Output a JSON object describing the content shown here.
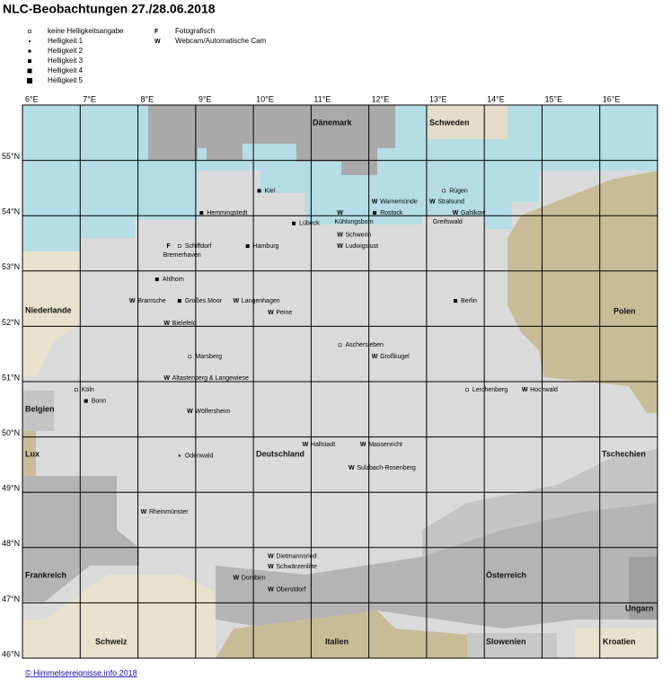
{
  "title": "NLC-Beobachtungen 27./28.06.2018",
  "legend": [
    {
      "label": "keine Helligkeitsangabe",
      "brightness": 0
    },
    {
      "label": "Helligkeit 1",
      "brightness": 1
    },
    {
      "label": "Helligkeit 2",
      "brightness": 2
    },
    {
      "label": "Helligkeit 3",
      "brightness": 3
    },
    {
      "label": "Helligkeit 4",
      "brightness": 4
    },
    {
      "label": "Helligkeit 5",
      "brightness": 5
    },
    {
      "label": "Fotografisch",
      "symbol": "F"
    },
    {
      "label": "Webcam/Automatische Cam",
      "symbol": "W"
    }
  ],
  "lonlim": [
    6,
    17
  ],
  "latlim": [
    46,
    56
  ],
  "lonticks": [
    {
      "value": 6,
      "label": "6°E"
    },
    {
      "value": 7,
      "label": "7°E"
    },
    {
      "value": 8,
      "label": "8°E"
    },
    {
      "value": 9,
      "label": "9°E"
    },
    {
      "value": 10,
      "label": "10°E"
    },
    {
      "value": 11,
      "label": "11°E"
    },
    {
      "value": 12,
      "label": "12°E"
    },
    {
      "value": 13,
      "label": "13°E"
    },
    {
      "value": 14,
      "label": "14°E"
    },
    {
      "value": 15,
      "label": "15°E"
    },
    {
      "value": 16,
      "label": "16°E"
    }
  ],
  "latticks": [
    {
      "value": 55,
      "label": "55°N"
    },
    {
      "value": 54,
      "label": "54°N"
    },
    {
      "value": 53,
      "label": "53°N"
    },
    {
      "value": 52,
      "label": "52°N"
    },
    {
      "value": 51,
      "label": "51°N"
    },
    {
      "value": 50,
      "label": "50°N"
    },
    {
      "value": 49,
      "label": "49°N"
    },
    {
      "value": 48,
      "label": "48°N"
    },
    {
      "value": 47,
      "label": "47°N"
    },
    {
      "value": 46,
      "label": "46°N"
    }
  ],
  "countries": [
    "Dänemark",
    "Schweden",
    "Niederlande",
    "Polen",
    "Belgien",
    "Lux",
    "Deutschland",
    "Tschechien",
    "Frankreich",
    "Österreich",
    "Ungarn",
    "Schweiz",
    "Italien",
    "Slowenien",
    "Kroatien"
  ],
  "sites": [
    {
      "name": "Kiel",
      "lon": 10.1,
      "lat": 54.45,
      "brightness": 3
    },
    {
      "name": "Hemmingstedt",
      "lon": 9.1,
      "lat": 54.05,
      "brightness": 3
    },
    {
      "name": "Warnemünde",
      "lon": 12.1,
      "lat": 54.25,
      "marker": "W"
    },
    {
      "name": "Rügen",
      "lon": 13.3,
      "lat": 54.45,
      "brightness": 0
    },
    {
      "name": "Stralsund",
      "lon": 13.1,
      "lat": 54.25,
      "marker": "W"
    },
    {
      "name": "Rostock",
      "lon": 12.1,
      "lat": 54.05,
      "brightness": 3
    },
    {
      "name": "Gahlkow",
      "lon": 13.5,
      "lat": 54.05,
      "marker": "W"
    },
    {
      "name": "Kühlungsborn",
      "lon": 11.5,
      "lat": 54.05,
      "marker": "W"
    },
    {
      "name": "Greifswald",
      "lon": 13.2,
      "lat": 54.05
    },
    {
      "name": "Lübeck",
      "lon": 10.7,
      "lat": 53.86,
      "brightness": 3
    },
    {
      "name": "Schwerin",
      "lon": 11.5,
      "lat": 53.65,
      "marker": "W"
    },
    {
      "name": "Ludwigslust",
      "lon": 11.5,
      "lat": 53.45,
      "marker": "W"
    },
    {
      "name": "Hamburg",
      "lon": 9.9,
      "lat": 53.45,
      "brightness": 3
    },
    {
      "name": "Schiffdorf",
      "lon": 8.72,
      "lat": 53.45,
      "brightness": 0
    },
    {
      "name": "Bremerhaven",
      "lon": 8.53,
      "lat": 53.45,
      "marker": "F"
    },
    {
      "name": "Ahlhorn",
      "lon": 8.33,
      "lat": 52.85,
      "brightness": 3
    },
    {
      "name": "Bramsche",
      "lon": 7.9,
      "lat": 52.46,
      "marker": "W"
    },
    {
      "name": "Großes Moor",
      "lon": 8.72,
      "lat": 52.46,
      "brightness": 3
    },
    {
      "name": "Langenhagen",
      "lon": 9.7,
      "lat": 52.46,
      "marker": "W"
    },
    {
      "name": "Berlin",
      "lon": 13.5,
      "lat": 52.46,
      "brightness": 3
    },
    {
      "name": "Peine",
      "lon": 10.3,
      "lat": 52.25,
      "marker": "W"
    },
    {
      "name": "Bielefeld",
      "lon": 8.5,
      "lat": 52.05,
      "marker": "W"
    },
    {
      "name": "Aschersleben",
      "lon": 11.5,
      "lat": 51.66,
      "brightness": 0
    },
    {
      "name": "Großkugel",
      "lon": 12.1,
      "lat": 51.45,
      "marker": "W"
    },
    {
      "name": "Marsberg",
      "lon": 8.9,
      "lat": 51.45,
      "brightness": 0
    },
    {
      "name": "Altastenberg & Langewiese",
      "lon": 8.5,
      "lat": 51.06,
      "marker": "W"
    },
    {
      "name": "Köln",
      "lon": 6.93,
      "lat": 50.85,
      "brightness": 0
    },
    {
      "name": "Bonn",
      "lon": 7.1,
      "lat": 50.65,
      "brightness": 3
    },
    {
      "name": "Lerchenberg",
      "lon": 13.7,
      "lat": 50.85,
      "brightness": 0
    },
    {
      "name": "Hochwald",
      "lon": 14.7,
      "lat": 50.85,
      "marker": "W"
    },
    {
      "name": "Wölfersheim",
      "lon": 8.9,
      "lat": 50.46,
      "marker": "W"
    },
    {
      "name": "Hallstadt",
      "lon": 10.9,
      "lat": 49.86,
      "marker": "W"
    },
    {
      "name": "Massenricht",
      "lon": 11.9,
      "lat": 49.86,
      "marker": "W"
    },
    {
      "name": "Odenwald",
      "lon": 8.72,
      "lat": 49.66,
      "brightness": 1
    },
    {
      "name": "Sulzbach-Rosenberg",
      "lon": 11.7,
      "lat": 49.44,
      "marker": "W"
    },
    {
      "name": "Rheinmünster",
      "lon": 8.1,
      "lat": 48.64,
      "marker": "W"
    },
    {
      "name": "Dietmannsried",
      "lon": 10.3,
      "lat": 47.84,
      "marker": "W"
    },
    {
      "name": "Schwärzenlifte",
      "lon": 10.3,
      "lat": 47.65,
      "marker": "W"
    },
    {
      "name": "Dornbirn",
      "lon": 9.7,
      "lat": 47.45,
      "marker": "W"
    },
    {
      "name": "Oberstdorf",
      "lon": 10.3,
      "lat": 47.24,
      "marker": "W"
    }
  ],
  "footer": "© Himmelsereignisse.info 2018"
}
